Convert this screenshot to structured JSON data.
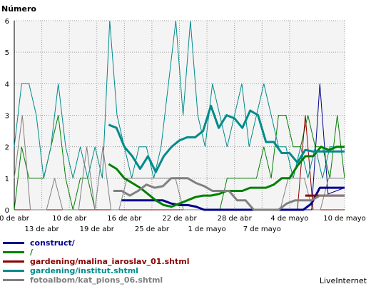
{
  "chart_data": {
    "type": "line",
    "ylabel": "Número",
    "ylim": [
      0,
      6
    ],
    "yticks": [
      0,
      1,
      2,
      3,
      4,
      5,
      6
    ],
    "grid": true,
    "x_start": "0 de abr",
    "x_end": "10 de mayo",
    "xticks_top": [
      "0 de abr",
      "10 de abr",
      "16 de abr",
      "22 de abr",
      "28 de abr",
      "4 de mayo",
      "10 de mayo"
    ],
    "xticks_bottom": [
      "13 de abr",
      "19 de abr",
      "25 de abr",
      "1 de mayo",
      "7 de mayo"
    ],
    "legend_position": "bottom",
    "series": [
      {
        "name": "construct/",
        "color": "#00008b",
        "thin": [
          0,
          0,
          0,
          0,
          0,
          0,
          0,
          0,
          0,
          0,
          0,
          0,
          0,
          0,
          0,
          0,
          0,
          0,
          0,
          0,
          0,
          0,
          0,
          0,
          0,
          0,
          0,
          0,
          0,
          0,
          0,
          0,
          0,
          0,
          0,
          0,
          0,
          4,
          0.5,
          0.6,
          0.7
        ],
        "avg": [
          null,
          null,
          null,
          null,
          null,
          null,
          null,
          null,
          null,
          null,
          null,
          null,
          null,
          0.3,
          0.3,
          0.3,
          0.3,
          0.3,
          0.3,
          0.2,
          0.15,
          0.15,
          0.1,
          0,
          0,
          0,
          0,
          0,
          0,
          0,
          0,
          0,
          0,
          0,
          0,
          0,
          0.2,
          0.7,
          0.7,
          0.7,
          0.7
        ]
      },
      {
        "name": "/",
        "color": "#008000",
        "thin": [
          0,
          2,
          1,
          1,
          1,
          2,
          3,
          1,
          0,
          1,
          1,
          0,
          0,
          0,
          0,
          0,
          0,
          0,
          0,
          0,
          0,
          0,
          0,
          0,
          0,
          0,
          0,
          0,
          0,
          1,
          1,
          1,
          1,
          1,
          2,
          1,
          3,
          3,
          2,
          2,
          3,
          2,
          2,
          1,
          3,
          1
        ],
        "avg": [
          null,
          null,
          null,
          null,
          null,
          null,
          null,
          null,
          null,
          null,
          null,
          null,
          1.45,
          1.3,
          1.0,
          0.85,
          0.7,
          0.5,
          0.3,
          0.15,
          0.1,
          0.2,
          0.3,
          0.4,
          0.45,
          0.45,
          0.5,
          0.6,
          0.6,
          0.6,
          0.7,
          0.7,
          0.7,
          0.8,
          1.0,
          1.0,
          1.4,
          1.7,
          1.7,
          2.0,
          1.9,
          2.0,
          2.0
        ]
      },
      {
        "name": "gardening/malina_iaroslav_01.shtml",
        "color": "#8b0000",
        "thin": [
          0,
          0,
          0,
          0,
          0,
          0,
          0,
          0,
          0,
          0,
          0,
          0,
          0,
          0,
          0,
          0,
          0,
          0,
          0,
          0,
          0,
          0,
          0,
          0,
          0,
          0,
          0,
          0,
          0,
          0,
          0,
          0,
          0,
          0,
          0,
          0,
          0,
          3,
          0,
          0,
          0,
          0,
          0
        ],
        "avg": [
          null,
          null,
          null,
          null,
          null,
          null,
          null,
          null,
          null,
          null,
          null,
          null,
          null,
          null,
          null,
          null,
          null,
          null,
          null,
          null,
          null,
          null,
          null,
          null,
          null,
          null,
          null,
          null,
          null,
          null,
          null,
          null,
          null,
          null,
          null,
          null,
          null,
          0.45,
          0.45,
          0.45,
          0.45,
          0.45,
          0.45
        ]
      },
      {
        "name": "gardening/institut.shtml",
        "color": "#008b8b",
        "thin": [
          2,
          4,
          4,
          3,
          1,
          2,
          4,
          2,
          1,
          2,
          1,
          2,
          1,
          6,
          3,
          2,
          1,
          2,
          2,
          1,
          2,
          4,
          6,
          3,
          6,
          3,
          2,
          4,
          3,
          2,
          3,
          4,
          2,
          3,
          4,
          3,
          2,
          2,
          1,
          2,
          1,
          2,
          1,
          2,
          2,
          2
        ],
        "avg": [
          null,
          null,
          null,
          null,
          null,
          null,
          null,
          null,
          null,
          null,
          null,
          null,
          2.7,
          2.6,
          2.0,
          1.7,
          1.3,
          1.7,
          1.2,
          1.7,
          2.0,
          2.2,
          2.3,
          2.3,
          2.5,
          3.3,
          2.6,
          3.0,
          2.9,
          2.6,
          3.15,
          3.0,
          2.15,
          2.15,
          1.8,
          1.8,
          1.5,
          1.9,
          1.85,
          1.85,
          1.85,
          1.85,
          1.85
        ]
      },
      {
        "name": "fotoalbom/kat_pions_06.shtml",
        "color": "#808080",
        "thin": [
          1,
          3,
          0,
          0,
          0,
          1,
          0,
          0,
          0,
          2,
          0,
          2,
          0,
          0,
          1,
          1,
          1,
          1,
          1,
          1,
          1,
          0,
          0,
          0,
          0,
          0,
          0,
          0,
          0,
          0,
          0,
          0,
          0,
          0,
          1,
          1,
          1,
          0,
          0,
          1,
          1,
          1
        ],
        "avg": [
          null,
          null,
          null,
          null,
          null,
          null,
          null,
          null,
          null,
          null,
          null,
          null,
          0.6,
          0.6,
          0.45,
          0.6,
          0.8,
          0.7,
          0.75,
          1.0,
          1.0,
          1.0,
          0.85,
          0.75,
          0.6,
          0.6,
          0.6,
          0.3,
          0.3,
          0,
          0,
          0,
          0,
          0.2,
          0.3,
          0.3,
          0.3,
          0.45,
          0.45,
          0.45,
          0.45
        ]
      }
    ]
  },
  "footer": {
    "brand": "LiveInternet"
  }
}
